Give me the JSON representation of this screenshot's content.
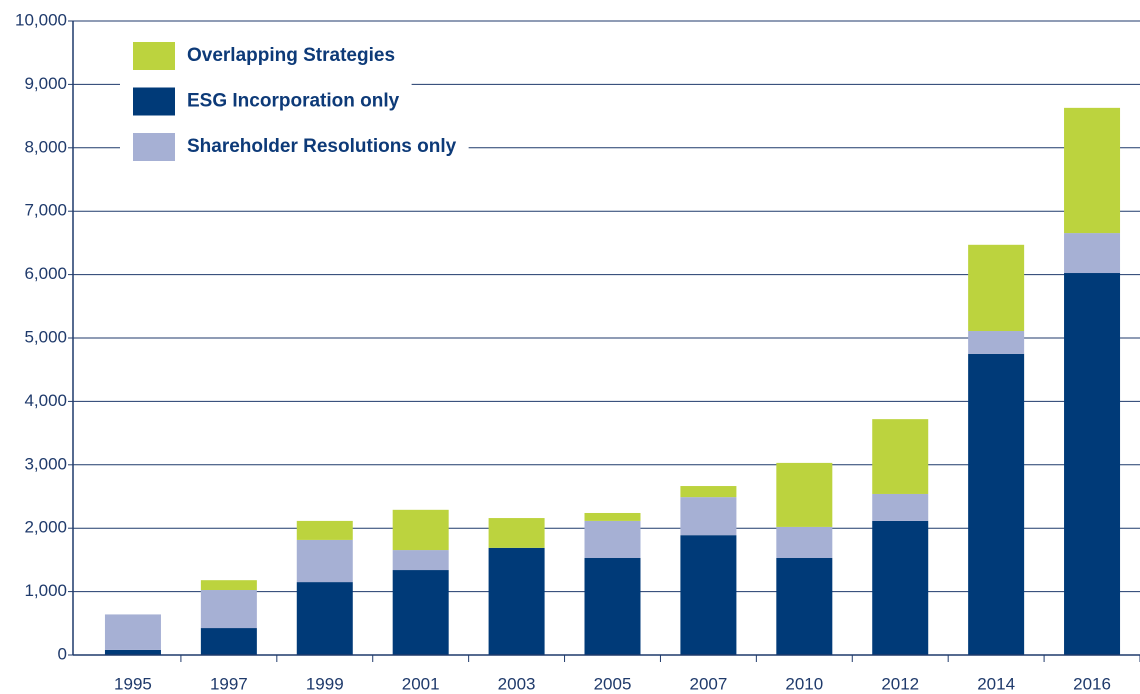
{
  "chart_data": {
    "type": "stacked_bar",
    "categories": [
      "1995",
      "1997",
      "1999",
      "2001",
      "2003",
      "2005",
      "2007",
      "2010",
      "2012",
      "2014",
      "2016"
    ],
    "series": [
      {
        "name": "ESG Incorporation only",
        "color": "#003a78",
        "values": [
          80,
          425,
          1150,
          1340,
          1690,
          1530,
          1890,
          1530,
          2115,
          4750,
          6025
        ]
      },
      {
        "name": "Shareholder Resolutions only",
        "color": "#a6b0d4",
        "values": [
          560,
          600,
          665,
          315,
          0,
          585,
          600,
          490,
          425,
          360,
          630
        ]
      },
      {
        "name": "Overlapping Strategies",
        "color": "#bcd33e",
        "values": [
          0,
          155,
          300,
          635,
          470,
          125,
          175,
          1010,
          1180,
          1360,
          1975
        ]
      }
    ],
    "legend_order": [
      "Overlapping Strategies",
      "ESG Incorporation only",
      "Shareholder Resolutions only"
    ],
    "ylim": [
      0,
      10000
    ],
    "yticks": [
      0,
      {
        "value": 1000,
        "label": "1,000"
      },
      {
        "value": 2000,
        "label": "2,000"
      },
      {
        "value": 3000,
        "label": "3,000"
      },
      {
        "value": 4000,
        "label": "4,000"
      },
      {
        "value": 5000,
        "label": "5,000"
      },
      {
        "value": 6000,
        "label": "6,000"
      },
      {
        "value": 7000,
        "label": "7,000"
      },
      {
        "value": 8000,
        "label": "8,000"
      },
      {
        "value": 9000,
        "label": "9,000"
      },
      {
        "value": 10000,
        "label": "10,000"
      }
    ],
    "grid": true,
    "legend": "upper left"
  }
}
